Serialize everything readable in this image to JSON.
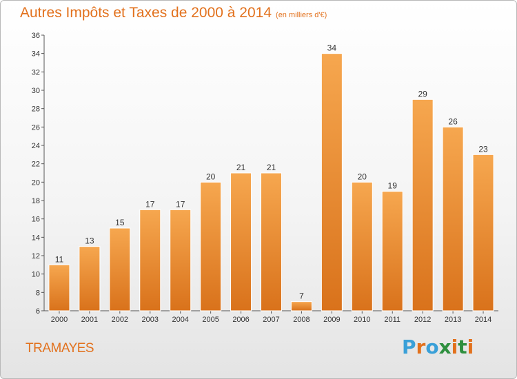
{
  "header": {
    "title": "Autres Impôts et Taxes de 2000 à 2014",
    "subtitle": "(en milliers d'€)"
  },
  "footer": {
    "commune": "TRAMAYES",
    "logo": [
      "P",
      "r",
      "o",
      "x",
      "i",
      "t",
      "i"
    ],
    "logo_colors": [
      "#3aa0d8",
      "#e2711d",
      "#3aa0d8",
      "#2e8f3e",
      "#e2711d",
      "#2e8f3e",
      "#e2711d"
    ]
  },
  "colors": {
    "accent": "#e2711d",
    "bar_top": "#f6a74f",
    "bar_bottom": "#d9721b",
    "axis": "#555555"
  },
  "chart_data": {
    "type": "bar",
    "title": "Autres Impôts et Taxes de 2000 à 2014",
    "categories": [
      "2000",
      "2001",
      "2002",
      "2003",
      "2004",
      "2005",
      "2006",
      "2007",
      "2008",
      "2009",
      "2010",
      "2011",
      "2012",
      "2013",
      "2014"
    ],
    "values": [
      11,
      13,
      15,
      17,
      17,
      20,
      21,
      21,
      7,
      34,
      20,
      19,
      29,
      26,
      23
    ],
    "ylim": [
      6,
      36
    ],
    "yticks": [
      6,
      8,
      10,
      12,
      14,
      16,
      18,
      20,
      22,
      24,
      26,
      28,
      30,
      32,
      34,
      36
    ],
    "grid": false,
    "data_labels": true
  }
}
